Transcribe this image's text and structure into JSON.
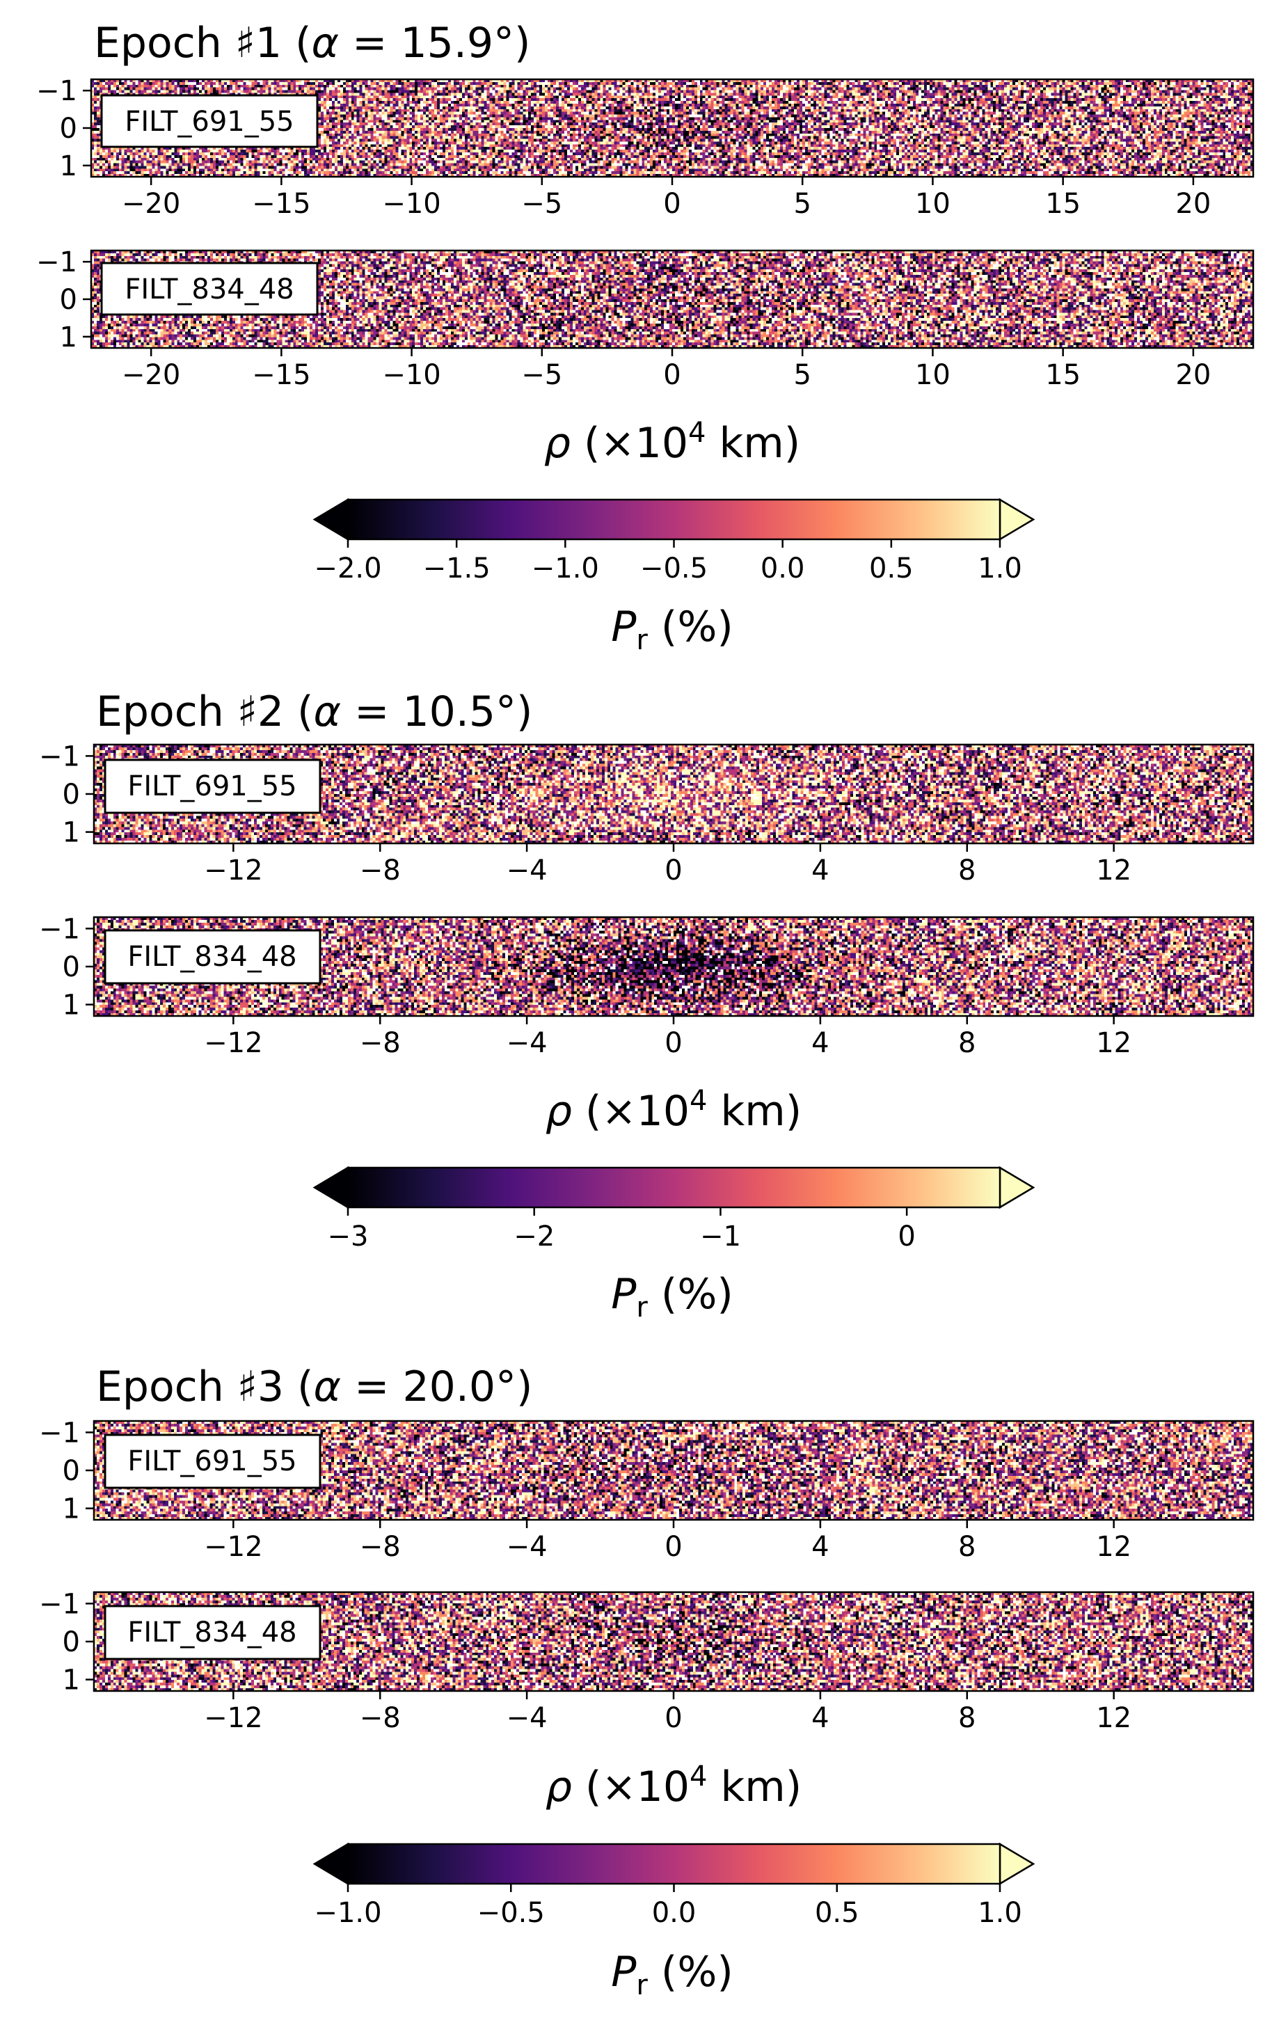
{
  "figure": {
    "epochs": [
      {
        "title_prefix": "Epoch ♯1 (",
        "title_alpha": "α",
        "title_suffix": " = 15.9°)",
        "xrange": [
          -22.3,
          22.3
        ],
        "xticks": [
          -20,
          -15,
          -10,
          -5,
          0,
          5,
          10,
          15,
          20
        ],
        "xtick_labels": [
          "−20",
          "−15",
          "−10",
          "−5",
          "0",
          "5",
          "10",
          "15",
          "20"
        ],
        "yticks": [
          -1,
          0,
          1
        ],
        "ytick_labels": [
          "−1",
          "0",
          "1"
        ],
        "yrange": [
          -1.3,
          1.3
        ],
        "panels": [
          {
            "filter": "FILT_691_55"
          },
          {
            "filter": "FILT_834_48"
          }
        ],
        "colorbar": {
          "vmin": -2.0,
          "vmax": 1.0,
          "ticks": [
            -2.0,
            -1.5,
            -1.0,
            -0.5,
            0.0,
            0.5,
            1.0
          ],
          "tick_labels": [
            "−2.0",
            "−1.5",
            "−1.0",
            "−0.5",
            "0.0",
            "0.5",
            "1.0"
          ],
          "extend": "both"
        }
      },
      {
        "title_prefix": "Epoch ♯2 (",
        "title_alpha": "α",
        "title_suffix": " = 10.5°)",
        "xrange": [
          -15.8,
          15.8
        ],
        "xticks": [
          -12,
          -8,
          -4,
          0,
          4,
          8,
          12
        ],
        "xtick_labels": [
          "−12",
          "−8",
          "−4",
          "0",
          "4",
          "8",
          "12"
        ],
        "yticks": [
          -1,
          0,
          1
        ],
        "ytick_labels": [
          "−1",
          "0",
          "1"
        ],
        "yrange": [
          -1.3,
          1.3
        ],
        "panels": [
          {
            "filter": "FILT_691_55"
          },
          {
            "filter": "FILT_834_48"
          }
        ],
        "colorbar": {
          "vmin": -3.0,
          "vmax": 0.5,
          "ticks": [
            -3,
            -2,
            -1,
            0
          ],
          "tick_labels": [
            "−3",
            "−2",
            "−1",
            "0"
          ],
          "extend": "both"
        }
      },
      {
        "title_prefix": "Epoch ♯3 (",
        "title_alpha": "α",
        "title_suffix": " = 20.0°)",
        "xrange": [
          -15.8,
          15.8
        ],
        "xticks": [
          -12,
          -8,
          -4,
          0,
          4,
          8,
          12
        ],
        "xtick_labels": [
          "−12",
          "−8",
          "−4",
          "0",
          "4",
          "8",
          "12"
        ],
        "yticks": [
          -1,
          0,
          1
        ],
        "ytick_labels": [
          "−1",
          "0",
          "1"
        ],
        "yrange": [
          -1.3,
          1.3
        ],
        "panels": [
          {
            "filter": "FILT_691_55"
          },
          {
            "filter": "FILT_834_48"
          }
        ],
        "colorbar": {
          "vmin": -1.0,
          "vmax": 1.0,
          "ticks": [
            -1.0,
            -0.5,
            0.0,
            0.5,
            1.0
          ],
          "tick_labels": [
            "−1.0",
            "−0.5",
            "0.0",
            "0.5",
            "1.0"
          ],
          "extend": "both"
        }
      }
    ],
    "xlabel_rho": "ρ",
    "xlabel_rest": " (×10",
    "xlabel_exp": "4",
    "xlabel_unit": " km)",
    "cblabel_P": "P",
    "cblabel_sub": "r",
    "cblabel_rest": " (%)",
    "colormap": "magma"
  },
  "chart_data": [
    {
      "type": "heatmap",
      "title": "Epoch ♯1 (α = 15.9°)",
      "panels": [
        "FILT_691_55",
        "FILT_834_48"
      ],
      "xlabel": "ρ (×10⁴ km)",
      "xlim": [
        -22.3,
        22.3
      ],
      "ylim": [
        1.3,
        -1.3
      ],
      "yticks": [
        -1,
        0,
        1
      ],
      "colorbar_label": "Pr (%)",
      "clim": [
        -2.0,
        1.0
      ],
      "colormap": "magma"
    },
    {
      "type": "heatmap",
      "title": "Epoch ♯2 (α = 10.5°)",
      "panels": [
        "FILT_691_55",
        "FILT_834_48"
      ],
      "xlabel": "ρ (×10⁴ km)",
      "xlim": [
        -15.8,
        15.8
      ],
      "ylim": [
        1.3,
        -1.3
      ],
      "yticks": [
        -1,
        0,
        1
      ],
      "colorbar_label": "Pr (%)",
      "clim": [
        -3.0,
        0.5
      ],
      "colormap": "magma"
    },
    {
      "type": "heatmap",
      "title": "Epoch ♯3 (α = 20.0°)",
      "panels": [
        "FILT_691_55",
        "FILT_834_48"
      ],
      "xlabel": "ρ (×10⁴ km)",
      "xlim": [
        -15.8,
        15.8
      ],
      "ylim": [
        1.3,
        -1.3
      ],
      "yticks": [
        -1,
        0,
        1
      ],
      "colorbar_label": "Pr (%)",
      "clim": [
        -1.0,
        1.0
      ],
      "colormap": "magma"
    }
  ]
}
